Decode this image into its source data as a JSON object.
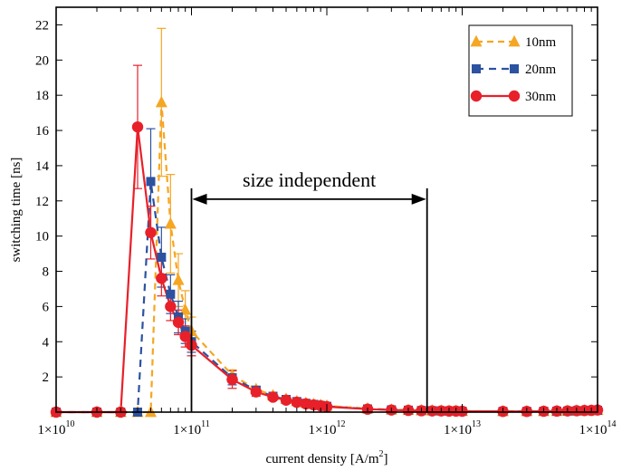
{
  "chart_data": {
    "type": "line",
    "xscale": "log",
    "xlim": [
      10000000000.0,
      100000000000000.0
    ],
    "ylim": [
      0,
      23
    ],
    "xlabel": "current density [A/m",
    "xlabel_sup": "2",
    "xlabel_end": "]",
    "ylabel": "switching time [ns]",
    "grid": false,
    "legend_position": "top-right",
    "x_ticks": [
      {
        "value": 10000000000.0,
        "base": "1×10",
        "exp": "10"
      },
      {
        "value": 100000000000.0,
        "base": "1×10",
        "exp": "11"
      },
      {
        "value": 1000000000000.0,
        "base": "",
        "exp": ""
      },
      {
        "value": 10000000000000.0,
        "base": "1×10",
        "exp": "13"
      },
      {
        "value": 100000000000000.0,
        "base": "1×10",
        "exp": "14"
      }
    ],
    "x_tick_1e12_text": "1×10",
    "x_tick_1e12_exp": "12",
    "y_ticks": [
      2,
      4,
      6,
      8,
      10,
      12,
      14,
      16,
      18,
      20,
      22
    ],
    "annotation": {
      "text": "size independent",
      "x_start": 100000000000.0,
      "x_end": 5500000000000.0,
      "y_arrow": 12.1,
      "y_top": 12.1,
      "y_bottom": 0
    },
    "series": [
      {
        "name": "10nm",
        "color": "#F5A623",
        "marker": "triangle",
        "dash": "7,5",
        "x": [
          10000000000.0,
          20000000000.0,
          30000000000.0,
          40000000000.0,
          50000000000.0,
          60000000000.0,
          70000000000.0,
          80000000000.0,
          90000000000.0,
          100000000000.0,
          200000000000.0,
          300000000000.0,
          400000000000.0,
          500000000000.0,
          600000000000.0,
          700000000000.0,
          800000000000.0,
          900000000000.0,
          1000000000000.0,
          2000000000000.0,
          3000000000000.0,
          4000000000000.0,
          5000000000000.0,
          6000000000000.0,
          7000000000000.0,
          8000000000000.0,
          9000000000000.0,
          10000000000000.0,
          20000000000000.0,
          30000000000000.0,
          40000000000000.0,
          50000000000000.0,
          60000000000000.0,
          70000000000000.0,
          80000000000000.0,
          90000000000000.0,
          100000000000000.0
        ],
        "y": [
          0,
          0,
          0,
          0,
          0,
          17.6,
          10.7,
          7.5,
          5.8,
          4.6,
          2.1,
          1.3,
          0.95,
          0.75,
          0.62,
          0.52,
          0.45,
          0.4,
          0.36,
          0.2,
          0.14,
          0.12,
          0.1,
          0.09,
          0.08,
          0.07,
          0.07,
          0.06,
          0.05,
          0.05,
          0.05,
          0.06,
          0.07,
          0.08,
          0.09,
          0.1,
          0.12
        ],
        "err": [
          0,
          0,
          0,
          0,
          0,
          4.2,
          2.8,
          1.5,
          1.1,
          0.8,
          0.3,
          0.15,
          0.1,
          0.08,
          0.06,
          0.05,
          0.04,
          0.03,
          0.03,
          0.02,
          0,
          0,
          0,
          0,
          0,
          0,
          0,
          0,
          0,
          0,
          0,
          0,
          0,
          0,
          0,
          0,
          0
        ]
      },
      {
        "name": "20nm",
        "color": "#2C52A0",
        "marker": "square",
        "dash": "8,6",
        "x": [
          10000000000.0,
          20000000000.0,
          30000000000.0,
          40000000000.0,
          50000000000.0,
          60000000000.0,
          70000000000.0,
          80000000000.0,
          90000000000.0,
          100000000000.0,
          200000000000.0,
          300000000000.0,
          400000000000.0,
          500000000000.0,
          600000000000.0,
          700000000000.0,
          800000000000.0,
          900000000000.0,
          1000000000000.0,
          2000000000000.0,
          3000000000000.0,
          4000000000000.0,
          5000000000000.0,
          6000000000000.0,
          7000000000000.0,
          8000000000000.0,
          9000000000000.0,
          10000000000000.0,
          20000000000000.0,
          30000000000000.0,
          40000000000000.0,
          50000000000000.0,
          60000000000000.0,
          70000000000000.0,
          80000000000000.0,
          90000000000000.0,
          100000000000000.0
        ],
        "y": [
          0,
          0,
          0,
          0,
          13.1,
          8.8,
          6.7,
          5.4,
          4.6,
          4.0,
          1.95,
          1.25,
          0.9,
          0.72,
          0.6,
          0.5,
          0.44,
          0.38,
          0.33,
          0.18,
          0.13,
          0.11,
          0.09,
          0.08,
          0.07,
          0.06,
          0.06,
          0.05,
          0.04,
          0.04,
          0.05,
          0.05,
          0.06,
          0.07,
          0.08,
          0.09,
          0.1
        ],
        "err": [
          0,
          0,
          0,
          0,
          3.0,
          1.7,
          1.1,
          0.9,
          0.7,
          0.6,
          0.4,
          0.2,
          0.12,
          0.09,
          0.07,
          0.06,
          0.05,
          0.04,
          0.04,
          0.02,
          0,
          0,
          0,
          0,
          0,
          0,
          0,
          0,
          0,
          0,
          0,
          0,
          0,
          0,
          0,
          0,
          0
        ]
      },
      {
        "name": "30nm",
        "color": "#E8202A",
        "marker": "circle",
        "dash": "",
        "x": [
          10000000000.0,
          20000000000.0,
          30000000000.0,
          40000000000.0,
          50000000000.0,
          60000000000.0,
          70000000000.0,
          80000000000.0,
          90000000000.0,
          100000000000.0,
          200000000000.0,
          300000000000.0,
          400000000000.0,
          500000000000.0,
          600000000000.0,
          700000000000.0,
          800000000000.0,
          900000000000.0,
          1000000000000.0,
          2000000000000.0,
          3000000000000.0,
          4000000000000.0,
          5000000000000.0,
          6000000000000.0,
          7000000000000.0,
          8000000000000.0,
          9000000000000.0,
          10000000000000.0,
          20000000000000.0,
          30000000000000.0,
          40000000000000.0,
          50000000000000.0,
          60000000000000.0,
          70000000000000.0,
          80000000000000.0,
          90000000000000.0,
          100000000000000.0
        ],
        "y": [
          0,
          0,
          0,
          16.2,
          10.2,
          7.6,
          6.0,
          5.1,
          4.3,
          3.8,
          1.85,
          1.15,
          0.85,
          0.68,
          0.56,
          0.47,
          0.41,
          0.36,
          0.31,
          0.17,
          0.12,
          0.1,
          0.08,
          0.07,
          0.07,
          0.06,
          0.06,
          0.05,
          0.04,
          0.04,
          0.05,
          0.06,
          0.07,
          0.08,
          0.09,
          0.1,
          0.12
        ],
        "err": [
          0,
          0,
          0,
          3.5,
          1.5,
          1.0,
          0.8,
          0.7,
          0.6,
          0.6,
          0.5,
          0.25,
          0.15,
          0.1,
          0.08,
          0.06,
          0.05,
          0.05,
          0.04,
          0.03,
          0,
          0,
          0,
          0,
          0,
          0,
          0,
          0,
          0,
          0,
          0,
          0,
          0,
          0,
          0,
          0,
          0
        ]
      }
    ]
  }
}
